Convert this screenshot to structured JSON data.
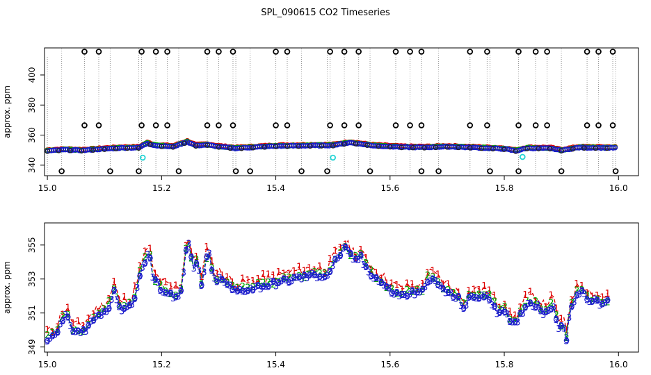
{
  "figure_title": "SPL_090615  CO2 Timeseries",
  "chart_data": [
    {
      "type": "scatter",
      "name": "top-panel",
      "ylabel": "approx. ppm",
      "xlim": [
        14.995,
        16.035
      ],
      "ylim": [
        333,
        418
      ],
      "xticks": [
        15.0,
        15.2,
        15.4,
        15.6,
        15.8,
        16.0
      ],
      "xtick_labels": [
        "15.0",
        "15.2",
        "15.4",
        "15.6",
        "15.8",
        "16.0"
      ],
      "yticks": [
        340,
        360,
        380,
        400
      ],
      "ytick_labels": [
        "340",
        "360",
        "380",
        "400"
      ],
      "baseline": [
        [
          15.0,
          349.5
        ],
        [
          15.03,
          350.2
        ],
        [
          15.06,
          349.8
        ],
        [
          15.1,
          350.8
        ],
        [
          15.13,
          351.5
        ],
        [
          15.16,
          351.6
        ],
        [
          15.175,
          354.5
        ],
        [
          15.19,
          353
        ],
        [
          15.22,
          352.3
        ],
        [
          15.245,
          355.5
        ],
        [
          15.26,
          353
        ],
        [
          15.28,
          353.5
        ],
        [
          15.3,
          352.3
        ],
        [
          15.33,
          351.2
        ],
        [
          15.4,
          352.7
        ],
        [
          15.46,
          353
        ],
        [
          15.5,
          353.2
        ],
        [
          15.53,
          355
        ],
        [
          15.57,
          353
        ],
        [
          15.62,
          352
        ],
        [
          15.66,
          351.8
        ],
        [
          15.7,
          352.3
        ],
        [
          15.76,
          351.5
        ],
        [
          15.8,
          350.8
        ],
        [
          15.82,
          349.5
        ],
        [
          15.84,
          351.3
        ],
        [
          15.88,
          351.2
        ],
        [
          15.9,
          349.8
        ],
        [
          15.93,
          351.7
        ],
        [
          15.99,
          351.5
        ]
      ],
      "flagged_high": [
        15.065,
        15.09,
        15.165,
        15.19,
        15.21,
        15.28,
        15.3,
        15.325,
        15.4,
        15.42,
        15.495,
        15.52,
        15.545,
        15.61,
        15.635,
        15.655,
        15.74,
        15.77,
        15.825,
        15.855,
        15.875,
        15.945,
        15.965,
        15.99
      ],
      "flagged_low": [
        15.025,
        15.11,
        15.16,
        15.23,
        15.33,
        15.355,
        15.445,
        15.49,
        15.565,
        15.655,
        15.685,
        15.775,
        15.825,
        15.9,
        15.995
      ],
      "cyan_points": [
        [
          15.167,
          345
        ],
        [
          15.5,
          345
        ],
        [
          15.832,
          345.5
        ]
      ]
    },
    {
      "type": "line",
      "name": "bottom-panel",
      "ylabel": "approx. ppm",
      "xlim": [
        14.995,
        16.035
      ],
      "ylim": [
        348.7,
        356.3
      ],
      "xticks": [
        15.0,
        15.2,
        15.4,
        15.6,
        15.8,
        16.0
      ],
      "xtick_labels": [
        "15.0",
        "15.2",
        "15.4",
        "15.6",
        "15.8",
        "16.0"
      ],
      "yticks": [
        349,
        351,
        353,
        355
      ],
      "ytick_labels": [
        "349",
        "351",
        "353",
        "355"
      ],
      "series": [
        {
          "name": "1",
          "color": "#dd0000",
          "offset": 0.45
        },
        {
          "name": "2",
          "color": "#00a800",
          "offset": 0.15
        },
        {
          "name": "3",
          "color": "#1a1acc",
          "offset": 0
        }
      ],
      "profile": [
        [
          15.0,
          349.5
        ],
        [
          15.015,
          349.6
        ],
        [
          15.025,
          350.6
        ],
        [
          15.035,
          350.8
        ],
        [
          15.045,
          349.9
        ],
        [
          15.06,
          349.8
        ],
        [
          15.08,
          350.6
        ],
        [
          15.1,
          351.1
        ],
        [
          15.11,
          351.5
        ],
        [
          15.118,
          352.5
        ],
        [
          15.125,
          351.2
        ],
        [
          15.14,
          351.4
        ],
        [
          15.15,
          351.5
        ],
        [
          15.16,
          353
        ],
        [
          15.17,
          353.9
        ],
        [
          15.178,
          354.7
        ],
        [
          15.185,
          353
        ],
        [
          15.2,
          352.4
        ],
        [
          15.22,
          352.0
        ],
        [
          15.235,
          352.2
        ],
        [
          15.242,
          354.6
        ],
        [
          15.248,
          355.0
        ],
        [
          15.255,
          353.5
        ],
        [
          15.262,
          354.0
        ],
        [
          15.27,
          352.6
        ],
        [
          15.278,
          354.2
        ],
        [
          15.285,
          354.4
        ],
        [
          15.29,
          352.9
        ],
        [
          15.3,
          353.0
        ],
        [
          15.315,
          352.7
        ],
        [
          15.325,
          352.3
        ],
        [
          15.335,
          352.3
        ],
        [
          15.35,
          352.4
        ],
        [
          15.38,
          352.6
        ],
        [
          15.42,
          352.9
        ],
        [
          15.46,
          353.2
        ],
        [
          15.49,
          353.2
        ],
        [
          15.505,
          354.1
        ],
        [
          15.52,
          354.8
        ],
        [
          15.53,
          354.4
        ],
        [
          15.54,
          354.1
        ],
        [
          15.548,
          354.3
        ],
        [
          15.555,
          353.8
        ],
        [
          15.57,
          353.2
        ],
        [
          15.585,
          352.8
        ],
        [
          15.6,
          352.3
        ],
        [
          15.62,
          352.0
        ],
        [
          15.64,
          352.2
        ],
        [
          15.655,
          352.1
        ],
        [
          15.665,
          353.0
        ],
        [
          15.68,
          352.8
        ],
        [
          15.7,
          352.2
        ],
        [
          15.72,
          351.8
        ],
        [
          15.73,
          351.3
        ],
        [
          15.74,
          351.9
        ],
        [
          15.76,
          352.0
        ],
        [
          15.775,
          351.8
        ],
        [
          15.79,
          351.0
        ],
        [
          15.8,
          351.3
        ],
        [
          15.81,
          350.4
        ],
        [
          15.82,
          350.3
        ],
        [
          15.83,
          351.0
        ],
        [
          15.84,
          351.6
        ],
        [
          15.855,
          351.5
        ],
        [
          15.87,
          351.0
        ],
        [
          15.885,
          351.5
        ],
        [
          15.895,
          350.2
        ],
        [
          15.905,
          350.0
        ],
        [
          15.91,
          349.4
        ],
        [
          15.915,
          351.2
        ],
        [
          15.925,
          352.0
        ],
        [
          15.935,
          352.3
        ],
        [
          15.95,
          351.8
        ],
        [
          15.97,
          351.5
        ],
        [
          15.985,
          351.7
        ]
      ]
    }
  ]
}
